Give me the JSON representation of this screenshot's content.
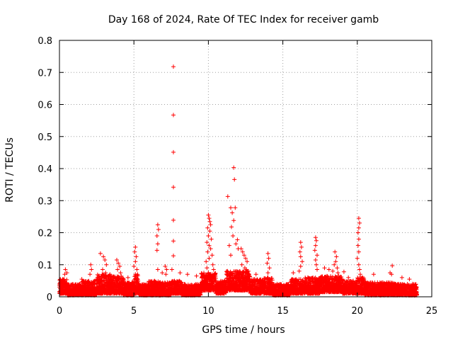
{
  "chart_data": {
    "type": "scatter",
    "title": "Day 168 of 2024, Rate Of TEC Index for receiver gamb",
    "xlabel": "GPS time / hours",
    "ylabel": "ROTI / TECUs",
    "xlim": [
      0,
      25
    ],
    "ylim": [
      0,
      0.8
    ],
    "x_ticks": [
      0,
      5,
      10,
      15,
      20,
      25
    ],
    "x_tick_labels": [
      "0",
      "5",
      "10",
      "15",
      "20",
      "25"
    ],
    "y_ticks": [
      0,
      0.1,
      0.2,
      0.3,
      0.4,
      0.5,
      0.6,
      0.7,
      0.8
    ],
    "y_tick_labels": [
      "0",
      "0.1",
      "0.2",
      "0.3",
      "0.4",
      "0.5",
      "0.6",
      "0.7",
      "0.8"
    ],
    "grid": true,
    "marker": "+",
    "color": "#ff0000",
    "series": [
      {
        "name": "ROTI",
        "points": [
          [
            7.65,
            0.718
          ],
          [
            7.65,
            0.567
          ],
          [
            7.65,
            0.451
          ],
          [
            7.65,
            0.342
          ],
          [
            7.65,
            0.239
          ],
          [
            7.65,
            0.174
          ],
          [
            7.65,
            0.128
          ],
          [
            7.55,
            0.085
          ],
          [
            8.1,
            0.075
          ],
          [
            11.7,
            0.403
          ],
          [
            11.75,
            0.366
          ],
          [
            11.3,
            0.313
          ],
          [
            11.5,
            0.278
          ],
          [
            11.8,
            0.278
          ],
          [
            11.6,
            0.262
          ],
          [
            11.7,
            0.238
          ],
          [
            11.55,
            0.218
          ],
          [
            11.65,
            0.19
          ],
          [
            11.4,
            0.16
          ],
          [
            11.85,
            0.165
          ],
          [
            11.95,
            0.178
          ],
          [
            11.5,
            0.13
          ],
          [
            12.0,
            0.15
          ],
          [
            10.0,
            0.255
          ],
          [
            10.05,
            0.245
          ],
          [
            10.1,
            0.235
          ],
          [
            10.15,
            0.225
          ],
          [
            9.95,
            0.215
          ],
          [
            10.1,
            0.205
          ],
          [
            10.0,
            0.19
          ],
          [
            10.2,
            0.18
          ],
          [
            9.9,
            0.17
          ],
          [
            10.05,
            0.16
          ],
          [
            10.15,
            0.15
          ],
          [
            9.95,
            0.14
          ],
          [
            10.25,
            0.13
          ],
          [
            10.05,
            0.12
          ],
          [
            9.85,
            0.11
          ],
          [
            10.3,
            0.1
          ],
          [
            9.9,
            0.09
          ],
          [
            10.35,
            0.085
          ],
          [
            10.0,
            0.075
          ],
          [
            6.6,
            0.225
          ],
          [
            6.65,
            0.21
          ],
          [
            6.55,
            0.19
          ],
          [
            6.6,
            0.165
          ],
          [
            6.55,
            0.145
          ],
          [
            6.6,
            0.085
          ],
          [
            6.9,
            0.075
          ],
          [
            20.1,
            0.245
          ],
          [
            20.15,
            0.23
          ],
          [
            20.1,
            0.215
          ],
          [
            20.05,
            0.2
          ],
          [
            20.1,
            0.18
          ],
          [
            20.05,
            0.16
          ],
          [
            20.1,
            0.14
          ],
          [
            20.0,
            0.12
          ],
          [
            20.1,
            0.1
          ],
          [
            20.15,
            0.085
          ],
          [
            20.2,
            0.07
          ],
          [
            17.2,
            0.185
          ],
          [
            17.25,
            0.175
          ],
          [
            17.2,
            0.16
          ],
          [
            17.15,
            0.145
          ],
          [
            17.3,
            0.13
          ],
          [
            17.2,
            0.115
          ],
          [
            17.25,
            0.1
          ],
          [
            17.3,
            0.085
          ],
          [
            16.2,
            0.17
          ],
          [
            16.25,
            0.155
          ],
          [
            16.15,
            0.14
          ],
          [
            16.2,
            0.125
          ],
          [
            16.3,
            0.11
          ],
          [
            16.2,
            0.095
          ],
          [
            16.1,
            0.08
          ],
          [
            18.5,
            0.14
          ],
          [
            18.6,
            0.125
          ],
          [
            18.55,
            0.11
          ],
          [
            18.45,
            0.1
          ],
          [
            18.65,
            0.09
          ],
          [
            18.35,
            0.08
          ],
          [
            18.7,
            0.075
          ],
          [
            12.2,
            0.15
          ],
          [
            12.3,
            0.14
          ],
          [
            12.4,
            0.13
          ],
          [
            12.5,
            0.12
          ],
          [
            12.6,
            0.11
          ],
          [
            12.25,
            0.1
          ],
          [
            12.45,
            0.09
          ],
          [
            12.55,
            0.085
          ],
          [
            12.35,
            0.075
          ],
          [
            12.7,
            0.07
          ],
          [
            5.1,
            0.155
          ],
          [
            5.05,
            0.14
          ],
          [
            5.15,
            0.125
          ],
          [
            5.1,
            0.11
          ],
          [
            5.0,
            0.095
          ],
          [
            5.2,
            0.085
          ],
          [
            5.1,
            0.07
          ],
          [
            3.85,
            0.115
          ],
          [
            3.95,
            0.105
          ],
          [
            4.05,
            0.095
          ],
          [
            3.9,
            0.085
          ],
          [
            4.1,
            0.075
          ],
          [
            2.95,
            0.125
          ],
          [
            3.05,
            0.115
          ],
          [
            3.15,
            0.1
          ],
          [
            2.9,
            0.085
          ],
          [
            3.1,
            0.075
          ],
          [
            2.75,
            0.135
          ],
          [
            2.1,
            0.1
          ],
          [
            2.15,
            0.085
          ],
          [
            2.05,
            0.07
          ],
          [
            7.1,
            0.095
          ],
          [
            7.2,
            0.085
          ],
          [
            7.15,
            0.07
          ],
          [
            14.0,
            0.135
          ],
          [
            14.05,
            0.12
          ],
          [
            13.95,
            0.105
          ],
          [
            14.1,
            0.09
          ],
          [
            14.0,
            0.075
          ],
          [
            0.4,
            0.085
          ],
          [
            0.5,
            0.075
          ],
          [
            0.35,
            0.07
          ],
          [
            22.35,
            0.097
          ],
          [
            22.2,
            0.075
          ],
          [
            22.3,
            0.07
          ],
          [
            21.1,
            0.07
          ],
          [
            19.1,
            0.078
          ],
          [
            19.4,
            0.06
          ],
          [
            18.1,
            0.085
          ],
          [
            17.8,
            0.09
          ],
          [
            15.7,
            0.075
          ],
          [
            13.2,
            0.07
          ],
          [
            9.2,
            0.065
          ],
          [
            8.6,
            0.07
          ],
          [
            4.6,
            0.06
          ],
          [
            1.5,
            0.055
          ],
          [
            23.0,
            0.06
          ],
          [
            23.5,
            0.055
          ]
        ],
        "dense_bands": [
          [
            0,
            0.5,
            0.01,
            0.055
          ],
          [
            0.5,
            1.5,
            0.005,
            0.04
          ],
          [
            1.5,
            2.5,
            0.005,
            0.05
          ],
          [
            2.5,
            3.5,
            0.01,
            0.07
          ],
          [
            3.5,
            4.3,
            0.01,
            0.065
          ],
          [
            4.3,
            5.0,
            0.005,
            0.045
          ],
          [
            5.0,
            5.3,
            0.01,
            0.07
          ],
          [
            5.3,
            6.0,
            0.005,
            0.04
          ],
          [
            6.0,
            6.8,
            0.005,
            0.05
          ],
          [
            6.8,
            7.5,
            0.005,
            0.045
          ],
          [
            7.5,
            8.2,
            0.01,
            0.05
          ],
          [
            8.2,
            9.5,
            0.005,
            0.04
          ],
          [
            9.5,
            10.5,
            0.02,
            0.075
          ],
          [
            10.5,
            11.2,
            0.01,
            0.05
          ],
          [
            11.2,
            12.8,
            0.02,
            0.08
          ],
          [
            12.8,
            13.6,
            0.01,
            0.055
          ],
          [
            13.6,
            14.3,
            0.01,
            0.06
          ],
          [
            14.3,
            15.5,
            0.005,
            0.04
          ],
          [
            15.5,
            16.5,
            0.01,
            0.055
          ],
          [
            16.5,
            17.5,
            0.01,
            0.06
          ],
          [
            17.5,
            19.0,
            0.015,
            0.065
          ],
          [
            19.0,
            20.0,
            0.01,
            0.05
          ],
          [
            20.0,
            20.5,
            0.01,
            0.06
          ],
          [
            20.5,
            21.5,
            0.005,
            0.045
          ],
          [
            21.5,
            22.5,
            0.005,
            0.045
          ],
          [
            22.5,
            24.0,
            0.005,
            0.04
          ]
        ]
      }
    ]
  }
}
